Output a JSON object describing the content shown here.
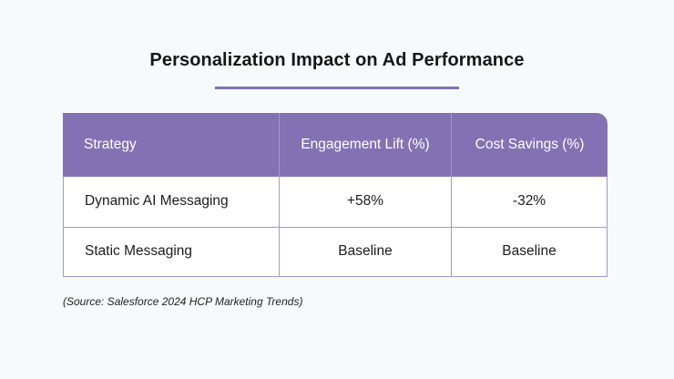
{
  "title": "Personalization Impact on Ad Performance",
  "table": {
    "headers": [
      "Strategy",
      "Engagement Lift (%)",
      "Cost Savings (%)"
    ],
    "rows": [
      [
        "Dynamic AI Messaging",
        "+58%",
        "-32%"
      ],
      [
        "Static Messaging",
        "Baseline",
        "Baseline"
      ]
    ]
  },
  "source": "(Source: Salesforce 2024 HCP Marketing Trends)",
  "colors": {
    "accent": "#8272b3",
    "background": "#f6fafd"
  }
}
